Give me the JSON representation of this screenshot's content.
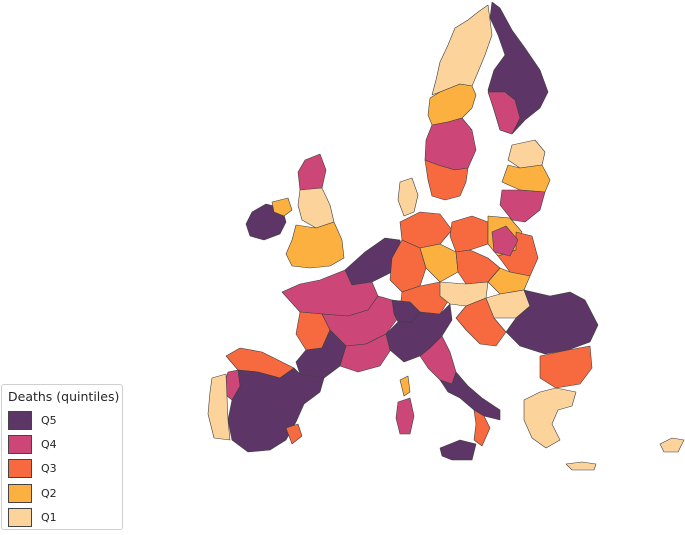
{
  "legend": {
    "title": "Deaths (quintiles)",
    "classes": [
      {
        "label": "Q5",
        "color": "#5d3566"
      },
      {
        "label": "Q4",
        "color": "#cc4677"
      },
      {
        "label": "Q3",
        "color": "#f7693f"
      },
      {
        "label": "Q2",
        "color": "#fcb040"
      },
      {
        "label": "Q1",
        "color": "#fdd39c"
      }
    ]
  },
  "regions": [
    {
      "name": "norway",
      "class": "Q1"
    },
    {
      "name": "norway-central",
      "class": "Q2"
    },
    {
      "name": "sweden-south",
      "class": "Q3"
    },
    {
      "name": "sweden-mid",
      "class": "Q4"
    },
    {
      "name": "finland-north",
      "class": "Q5"
    },
    {
      "name": "finland-south",
      "class": "Q4"
    },
    {
      "name": "baltics-north",
      "class": "Q1"
    },
    {
      "name": "baltics-mid",
      "class": "Q2"
    },
    {
      "name": "baltics-south",
      "class": "Q4"
    },
    {
      "name": "scotland",
      "class": "Q4"
    },
    {
      "name": "england-north",
      "class": "Q1"
    },
    {
      "name": "england-south",
      "class": "Q2"
    },
    {
      "name": "ireland",
      "class": "Q5"
    },
    {
      "name": "ireland-east",
      "class": "Q2"
    },
    {
      "name": "denmark",
      "class": "Q1"
    },
    {
      "name": "benelux",
      "class": "Q5"
    },
    {
      "name": "germany-west",
      "class": "Q3"
    },
    {
      "name": "germany-north",
      "class": "Q3"
    },
    {
      "name": "germany-east",
      "class": "Q2"
    },
    {
      "name": "germany-south",
      "class": "Q3"
    },
    {
      "name": "poland-west",
      "class": "Q3"
    },
    {
      "name": "poland-central",
      "class": "Q2"
    },
    {
      "name": "poland-east",
      "class": "Q3"
    },
    {
      "name": "poland-south",
      "class": "Q4"
    },
    {
      "name": "czech",
      "class": "Q3"
    },
    {
      "name": "slovakia",
      "class": "Q2"
    },
    {
      "name": "hungary",
      "class": "Q1"
    },
    {
      "name": "austria",
      "class": "Q1"
    },
    {
      "name": "romania",
      "class": "Q5"
    },
    {
      "name": "bulgaria",
      "class": "Q3"
    },
    {
      "name": "croatia",
      "class": "Q3"
    },
    {
      "name": "france-north",
      "class": "Q4"
    },
    {
      "name": "france-central",
      "class": "Q4"
    },
    {
      "name": "france-west",
      "class": "Q3"
    },
    {
      "name": "france-southwest",
      "class": "Q5"
    },
    {
      "name": "france-southeast",
      "class": "Q4"
    },
    {
      "name": "switzerland",
      "class": "Q5"
    },
    {
      "name": "italy-north",
      "class": "Q5"
    },
    {
      "name": "italy-central",
      "class": "Q4"
    },
    {
      "name": "italy-south",
      "class": "Q5"
    },
    {
      "name": "calabria",
      "class": "Q3"
    },
    {
      "name": "sicily",
      "class": "Q5"
    },
    {
      "name": "sardinia",
      "class": "Q4"
    },
    {
      "name": "corsica",
      "class": "Q2"
    },
    {
      "name": "spain",
      "class": "Q5"
    },
    {
      "name": "spain-north",
      "class": "Q3"
    },
    {
      "name": "spain-west",
      "class": "Q4"
    },
    {
      "name": "spain-east",
      "class": "Q3"
    },
    {
      "name": "portugal",
      "class": "Q1"
    },
    {
      "name": "greece",
      "class": "Q1"
    },
    {
      "name": "crete",
      "class": "Q1"
    },
    {
      "name": "cyprus",
      "class": "Q1"
    }
  ]
}
